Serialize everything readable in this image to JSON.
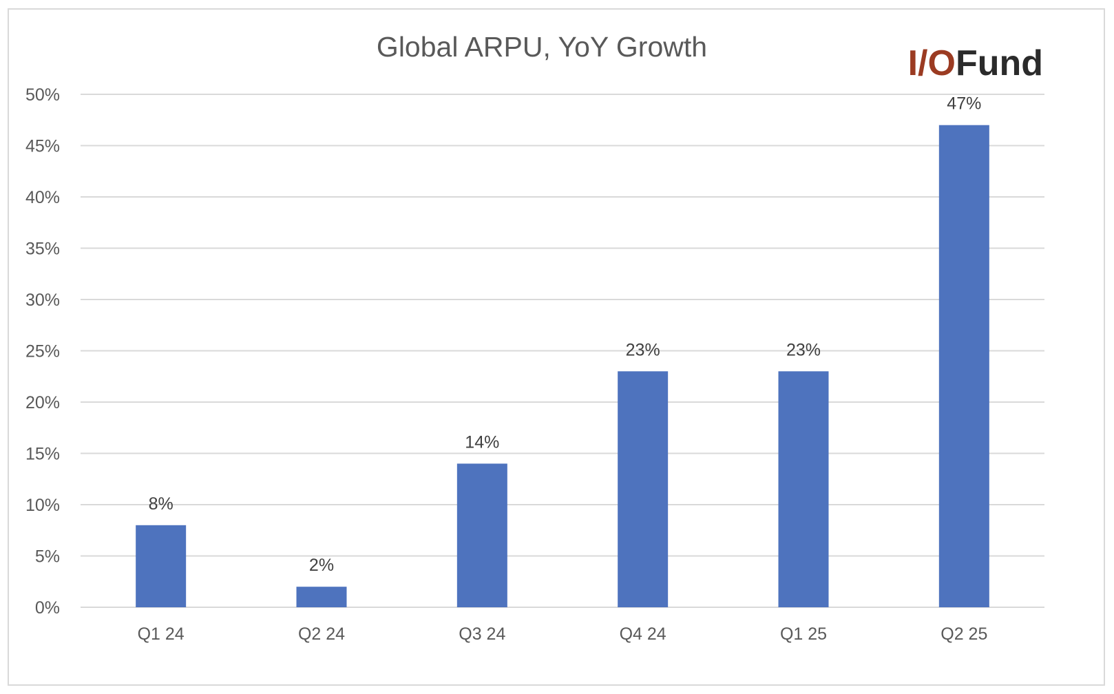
{
  "colors": {
    "bar": "#4e73be",
    "logo_io": "#9b3b22",
    "logo_fund": "#2b2b2b"
  },
  "logo": {
    "io": "I/O",
    "fund": "Fund"
  },
  "chart_data": {
    "type": "bar",
    "title": "Global ARPU, YoY Growth",
    "xlabel": "",
    "ylabel": "",
    "categories": [
      "Q1 24",
      "Q2 24",
      "Q3 24",
      "Q4 24",
      "Q1 25",
      "Q2 25"
    ],
    "values": [
      8,
      2,
      14,
      23,
      23,
      47
    ],
    "data_labels": [
      "8%",
      "2%",
      "14%",
      "23%",
      "23%",
      "47%"
    ],
    "ylim": [
      0,
      50
    ],
    "yticks": [
      0,
      5,
      10,
      15,
      20,
      25,
      30,
      35,
      40,
      45,
      50
    ],
    "ytick_labels": [
      "0%",
      "5%",
      "10%",
      "15%",
      "20%",
      "25%",
      "30%",
      "35%",
      "40%",
      "45%",
      "50%"
    ],
    "grid": true,
    "legend": "none"
  }
}
